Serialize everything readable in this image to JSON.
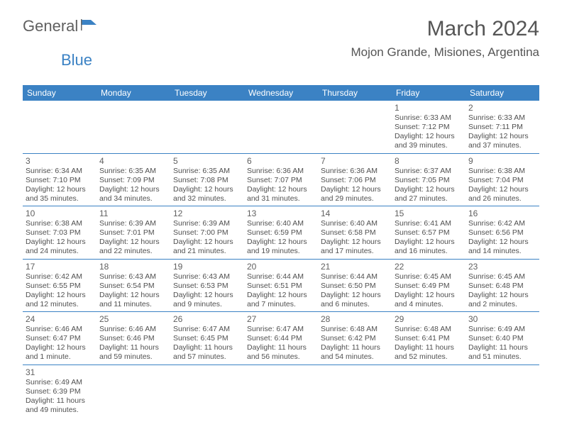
{
  "brand": {
    "name1": "General",
    "name2": "Blue"
  },
  "title": "March 2024",
  "location": "Mojon Grande, Misiones, Argentina",
  "colors": {
    "header_bg": "#3b82c4",
    "header_fg": "#ffffff",
    "text": "#505050",
    "brand_blue": "#3b82c4"
  },
  "weekdays": [
    "Sunday",
    "Monday",
    "Tuesday",
    "Wednesday",
    "Thursday",
    "Friday",
    "Saturday"
  ],
  "weeks": [
    [
      null,
      null,
      null,
      null,
      null,
      {
        "d": "1",
        "sr": "Sunrise: 6:33 AM",
        "ss": "Sunset: 7:12 PM",
        "dl1": "Daylight: 12 hours",
        "dl2": "and 39 minutes."
      },
      {
        "d": "2",
        "sr": "Sunrise: 6:33 AM",
        "ss": "Sunset: 7:11 PM",
        "dl1": "Daylight: 12 hours",
        "dl2": "and 37 minutes."
      }
    ],
    [
      {
        "d": "3",
        "sr": "Sunrise: 6:34 AM",
        "ss": "Sunset: 7:10 PM",
        "dl1": "Daylight: 12 hours",
        "dl2": "and 35 minutes."
      },
      {
        "d": "4",
        "sr": "Sunrise: 6:35 AM",
        "ss": "Sunset: 7:09 PM",
        "dl1": "Daylight: 12 hours",
        "dl2": "and 34 minutes."
      },
      {
        "d": "5",
        "sr": "Sunrise: 6:35 AM",
        "ss": "Sunset: 7:08 PM",
        "dl1": "Daylight: 12 hours",
        "dl2": "and 32 minutes."
      },
      {
        "d": "6",
        "sr": "Sunrise: 6:36 AM",
        "ss": "Sunset: 7:07 PM",
        "dl1": "Daylight: 12 hours",
        "dl2": "and 31 minutes."
      },
      {
        "d": "7",
        "sr": "Sunrise: 6:36 AM",
        "ss": "Sunset: 7:06 PM",
        "dl1": "Daylight: 12 hours",
        "dl2": "and 29 minutes."
      },
      {
        "d": "8",
        "sr": "Sunrise: 6:37 AM",
        "ss": "Sunset: 7:05 PM",
        "dl1": "Daylight: 12 hours",
        "dl2": "and 27 minutes."
      },
      {
        "d": "9",
        "sr": "Sunrise: 6:38 AM",
        "ss": "Sunset: 7:04 PM",
        "dl1": "Daylight: 12 hours",
        "dl2": "and 26 minutes."
      }
    ],
    [
      {
        "d": "10",
        "sr": "Sunrise: 6:38 AM",
        "ss": "Sunset: 7:03 PM",
        "dl1": "Daylight: 12 hours",
        "dl2": "and 24 minutes."
      },
      {
        "d": "11",
        "sr": "Sunrise: 6:39 AM",
        "ss": "Sunset: 7:01 PM",
        "dl1": "Daylight: 12 hours",
        "dl2": "and 22 minutes."
      },
      {
        "d": "12",
        "sr": "Sunrise: 6:39 AM",
        "ss": "Sunset: 7:00 PM",
        "dl1": "Daylight: 12 hours",
        "dl2": "and 21 minutes."
      },
      {
        "d": "13",
        "sr": "Sunrise: 6:40 AM",
        "ss": "Sunset: 6:59 PM",
        "dl1": "Daylight: 12 hours",
        "dl2": "and 19 minutes."
      },
      {
        "d": "14",
        "sr": "Sunrise: 6:40 AM",
        "ss": "Sunset: 6:58 PM",
        "dl1": "Daylight: 12 hours",
        "dl2": "and 17 minutes."
      },
      {
        "d": "15",
        "sr": "Sunrise: 6:41 AM",
        "ss": "Sunset: 6:57 PM",
        "dl1": "Daylight: 12 hours",
        "dl2": "and 16 minutes."
      },
      {
        "d": "16",
        "sr": "Sunrise: 6:42 AM",
        "ss": "Sunset: 6:56 PM",
        "dl1": "Daylight: 12 hours",
        "dl2": "and 14 minutes."
      }
    ],
    [
      {
        "d": "17",
        "sr": "Sunrise: 6:42 AM",
        "ss": "Sunset: 6:55 PM",
        "dl1": "Daylight: 12 hours",
        "dl2": "and 12 minutes."
      },
      {
        "d": "18",
        "sr": "Sunrise: 6:43 AM",
        "ss": "Sunset: 6:54 PM",
        "dl1": "Daylight: 12 hours",
        "dl2": "and 11 minutes."
      },
      {
        "d": "19",
        "sr": "Sunrise: 6:43 AM",
        "ss": "Sunset: 6:53 PM",
        "dl1": "Daylight: 12 hours",
        "dl2": "and 9 minutes."
      },
      {
        "d": "20",
        "sr": "Sunrise: 6:44 AM",
        "ss": "Sunset: 6:51 PM",
        "dl1": "Daylight: 12 hours",
        "dl2": "and 7 minutes."
      },
      {
        "d": "21",
        "sr": "Sunrise: 6:44 AM",
        "ss": "Sunset: 6:50 PM",
        "dl1": "Daylight: 12 hours",
        "dl2": "and 6 minutes."
      },
      {
        "d": "22",
        "sr": "Sunrise: 6:45 AM",
        "ss": "Sunset: 6:49 PM",
        "dl1": "Daylight: 12 hours",
        "dl2": "and 4 minutes."
      },
      {
        "d": "23",
        "sr": "Sunrise: 6:45 AM",
        "ss": "Sunset: 6:48 PM",
        "dl1": "Daylight: 12 hours",
        "dl2": "and 2 minutes."
      }
    ],
    [
      {
        "d": "24",
        "sr": "Sunrise: 6:46 AM",
        "ss": "Sunset: 6:47 PM",
        "dl1": "Daylight: 12 hours",
        "dl2": "and 1 minute."
      },
      {
        "d": "25",
        "sr": "Sunrise: 6:46 AM",
        "ss": "Sunset: 6:46 PM",
        "dl1": "Daylight: 11 hours",
        "dl2": "and 59 minutes."
      },
      {
        "d": "26",
        "sr": "Sunrise: 6:47 AM",
        "ss": "Sunset: 6:45 PM",
        "dl1": "Daylight: 11 hours",
        "dl2": "and 57 minutes."
      },
      {
        "d": "27",
        "sr": "Sunrise: 6:47 AM",
        "ss": "Sunset: 6:44 PM",
        "dl1": "Daylight: 11 hours",
        "dl2": "and 56 minutes."
      },
      {
        "d": "28",
        "sr": "Sunrise: 6:48 AM",
        "ss": "Sunset: 6:42 PM",
        "dl1": "Daylight: 11 hours",
        "dl2": "and 54 minutes."
      },
      {
        "d": "29",
        "sr": "Sunrise: 6:48 AM",
        "ss": "Sunset: 6:41 PM",
        "dl1": "Daylight: 11 hours",
        "dl2": "and 52 minutes."
      },
      {
        "d": "30",
        "sr": "Sunrise: 6:49 AM",
        "ss": "Sunset: 6:40 PM",
        "dl1": "Daylight: 11 hours",
        "dl2": "and 51 minutes."
      }
    ],
    [
      {
        "d": "31",
        "sr": "Sunrise: 6:49 AM",
        "ss": "Sunset: 6:39 PM",
        "dl1": "Daylight: 11 hours",
        "dl2": "and 49 minutes."
      },
      null,
      null,
      null,
      null,
      null,
      null
    ]
  ]
}
